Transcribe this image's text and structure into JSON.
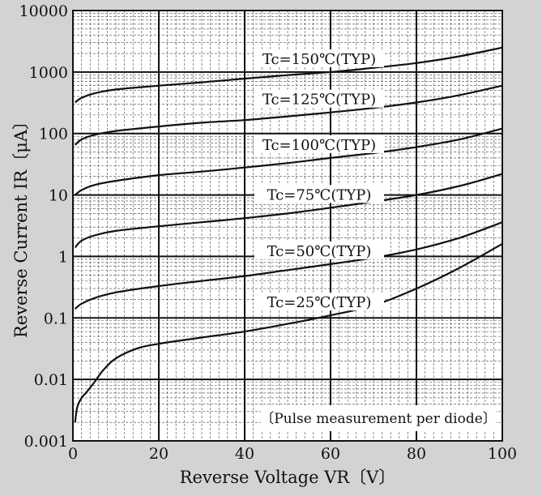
{
  "chart_data": {
    "type": "line",
    "xlabel": "Reverse Voltage VR〔V〕",
    "ylabel": "Reverse Current IR〔μA〕",
    "xlim": [
      0,
      100
    ],
    "ylim": [
      0.001,
      10000
    ],
    "yscale": "log",
    "grid": true,
    "x_ticks": [
      0,
      20,
      40,
      60,
      80,
      100
    ],
    "x_tick_labels": [
      "0",
      "20",
      "40",
      "60",
      "80",
      "100"
    ],
    "y_ticks": [
      0.001,
      0.01,
      0.1,
      1,
      10,
      100,
      1000,
      10000
    ],
    "y_tick_labels": [
      "0.001",
      "0.01",
      "0.1",
      "1",
      "10",
      "100",
      "1000",
      "10000"
    ],
    "annotation": "〔Pulse measurement per diode〕",
    "series": [
      {
        "name": "Tc=150℃(TYP)",
        "x": [
          0.5,
          2,
          5,
          10,
          20,
          30,
          40,
          50,
          60,
          70,
          80,
          90,
          100
        ],
        "values": [
          320,
          380,
          450,
          520,
          600,
          680,
          780,
          890,
          1000,
          1170,
          1400,
          1800,
          2500
        ]
      },
      {
        "name": "Tc=125℃(TYP)",
        "x": [
          0.5,
          2,
          5,
          10,
          20,
          30,
          40,
          50,
          60,
          70,
          80,
          90,
          100
        ],
        "values": [
          65,
          80,
          95,
          110,
          130,
          150,
          165,
          190,
          220,
          260,
          320,
          420,
          600
        ]
      },
      {
        "name": "Tc=100℃(TYP)",
        "x": [
          0.5,
          2,
          5,
          10,
          20,
          30,
          40,
          50,
          60,
          70,
          80,
          90,
          100
        ],
        "values": [
          10,
          12,
          14.5,
          17,
          21,
          24,
          28,
          33,
          40,
          48,
          60,
          80,
          120
        ]
      },
      {
        "name": "Tc=75℃(TYP)",
        "x": [
          0.5,
          2,
          5,
          10,
          20,
          30,
          40,
          50,
          60,
          70,
          80,
          90,
          100
        ],
        "values": [
          1.4,
          1.8,
          2.2,
          2.6,
          3.1,
          3.6,
          4.2,
          5,
          6.2,
          7.8,
          10,
          14,
          22
        ]
      },
      {
        "name": "Tc=50℃(TYP)",
        "x": [
          0.5,
          2,
          5,
          10,
          20,
          30,
          40,
          50,
          60,
          70,
          80,
          90,
          100
        ],
        "values": [
          0.14,
          0.17,
          0.21,
          0.26,
          0.33,
          0.4,
          0.48,
          0.6,
          0.75,
          0.95,
          1.3,
          2,
          3.6
        ]
      },
      {
        "name": "Tc=25℃(TYP)",
        "x": [
          0.5,
          1,
          2,
          3,
          5,
          7,
          10,
          15,
          20,
          30,
          40,
          50,
          60,
          70,
          80,
          90,
          100
        ],
        "values": [
          0.002,
          0.0035,
          0.005,
          0.006,
          0.009,
          0.014,
          0.022,
          0.032,
          0.038,
          0.048,
          0.06,
          0.08,
          0.11,
          0.16,
          0.3,
          0.65,
          1.6
        ]
      }
    ]
  }
}
